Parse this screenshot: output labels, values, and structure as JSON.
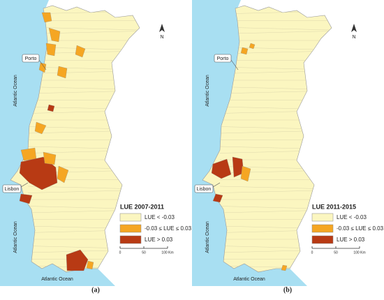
{
  "panels": [
    {
      "legend": {
        "title": "LUE 2007-2011",
        "items": [
          {
            "label": "LUE < -0.03"
          },
          {
            "label": "-0.03 ≤ LUE ≤ 0.03"
          },
          {
            "label": "LUE > 0.03"
          }
        ]
      },
      "labels": {
        "porto": "Porto",
        "lisbon": "Lisbon",
        "ocean_north": "Atlantic Ocean",
        "ocean_west": "Atlantic Ocean",
        "ocean_south": "Atlantic Ocean"
      },
      "scale": [
        "0",
        "50",
        "100 Km"
      ],
      "north": "N",
      "caption": "(a)"
    },
    {
      "legend": {
        "title": "LUE 2011-2015",
        "items": [
          {
            "label": "LUE < -0.03"
          },
          {
            "label": "-0.03 ≤ LUE ≤ 0.03"
          },
          {
            "label": "LUE > 0.03"
          }
        ]
      },
      "labels": {
        "porto": "Porto",
        "lisbon": "Lisbon",
        "ocean_north": "Atlantic Ocean",
        "ocean_west": "Atlantic Ocean",
        "ocean_south": "Atlantic Ocean"
      },
      "scale": [
        "0",
        "50",
        "100 Km"
      ],
      "north": "N",
      "caption": "(b)"
    }
  ]
}
